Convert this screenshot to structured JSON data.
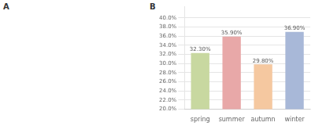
{
  "chart_data": {
    "type": "bar",
    "categories": [
      "spring",
      "summer",
      "autumn",
      "winter"
    ],
    "values": [
      32.3,
      35.9,
      29.8,
      36.9
    ],
    "value_labels": [
      "32.30%",
      "35.90%",
      "29.80%",
      "36.90%"
    ],
    "data_labels": true,
    "colors": [
      "#c8d8a0",
      "#e8a8a8",
      "#f5c8a0",
      "#a8b8d8"
    ],
    "ylim": [
      20.0,
      42.5
    ],
    "yticks": [
      {
        "value": 20,
        "label": "20.0%"
      },
      {
        "value": 22,
        "label": "22.0%"
      },
      {
        "value": 24,
        "label": "24.0%"
      },
      {
        "value": 26,
        "label": "26.0%"
      },
      {
        "value": 28,
        "label": "28.0%"
      },
      {
        "value": 30,
        "label": "30.0%"
      },
      {
        "value": 32,
        "label": "32.0%"
      },
      {
        "value": 34,
        "label": "34.0%"
      },
      {
        "value": 36,
        "label": "36.0%"
      },
      {
        "value": 38,
        "label": "38.0%"
      },
      {
        "value": 40,
        "label": "40.0%"
      }
    ],
    "grid": true,
    "annotations": [
      "A",
      "B"
    ]
  }
}
